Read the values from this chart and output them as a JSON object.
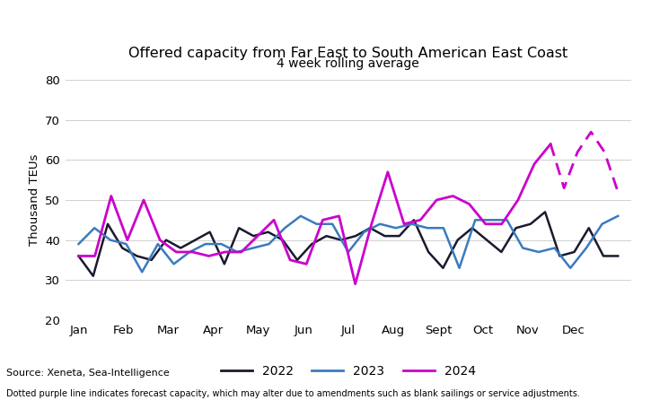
{
  "title": "Offered capacity from Far East to South American East Coast",
  "subtitle": "4 week rolling average",
  "ylabel": "Thousand TEUs",
  "source": "Source: Xeneta, Sea-Intelligence",
  "footnote": "Dotted purple line indicates forecast capacity, which may alter due to amendments such as blank sailings or service adjustments.",
  "xlabels": [
    "Jan",
    "Feb",
    "Mar",
    "Apr",
    "May",
    "Jun",
    "Jul",
    "Aug",
    "Sept",
    "Oct",
    "Nov",
    "Dec"
  ],
  "ylim": [
    20,
    80
  ],
  "yticks": [
    20,
    30,
    40,
    50,
    60,
    70,
    80
  ],
  "color_2022": "#1a1a2e",
  "color_2023": "#3a7abf",
  "color_2024_solid": "#cc00cc",
  "color_2024_dashed": "#cc00cc",
  "y2022": [
    36,
    31,
    44,
    38,
    36,
    35,
    40,
    38,
    40,
    42,
    34,
    43,
    41,
    42,
    40,
    35,
    39,
    41,
    40,
    41,
    43,
    41,
    41,
    45,
    37,
    33,
    40,
    43,
    40,
    37,
    43,
    44,
    47,
    36,
    37,
    43,
    36,
    36
  ],
  "y2023": [
    39,
    43,
    40,
    39,
    32,
    39,
    34,
    37,
    39,
    39,
    37,
    38,
    39,
    43,
    46,
    44,
    44,
    37,
    42,
    44,
    43,
    44,
    43,
    43,
    33,
    45,
    45,
    45,
    38,
    37,
    38,
    33,
    38,
    44,
    46
  ],
  "y2024_solid": [
    36,
    36,
    51,
    40,
    50,
    40,
    37,
    37,
    36,
    37,
    37,
    41,
    45,
    35,
    34,
    45,
    46,
    29,
    44,
    57,
    44,
    45,
    50,
    51,
    49,
    44,
    44,
    50,
    59,
    64
  ],
  "y2024_dashed": [
    64,
    53,
    62,
    67,
    62,
    52
  ],
  "lw_2022": 1.8,
  "lw_2023": 1.8,
  "lw_2024": 2.0
}
